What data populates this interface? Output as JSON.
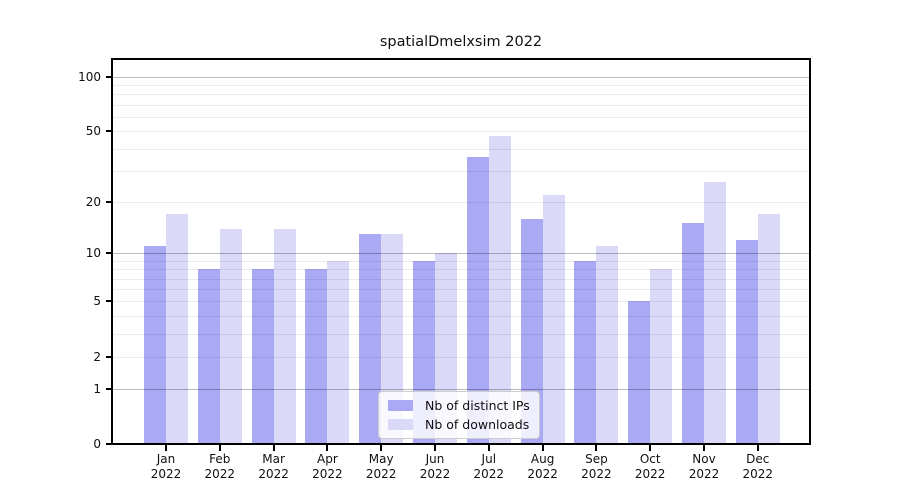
{
  "title": "spatialDmelxsim 2022",
  "chart_data": {
    "type": "bar",
    "title": "spatialDmelxsim 2022",
    "categories": [
      "Jan\n2022",
      "Feb\n2022",
      "Mar\n2022",
      "Apr\n2022",
      "May\n2022",
      "Jun\n2022",
      "Jul\n2022",
      "Aug\n2022",
      "Sep\n2022",
      "Oct\n2022",
      "Nov\n2022",
      "Dec\n2022"
    ],
    "series": [
      {
        "name": "Nb of distinct IPs",
        "color": "#a9a9f4",
        "values": [
          11,
          8,
          8,
          8,
          13,
          9,
          36,
          16,
          9,
          5,
          15,
          12
        ]
      },
      {
        "name": "Nb of downloads",
        "color": "#dadaf8",
        "values": [
          17,
          14,
          14,
          9,
          13,
          10,
          47,
          22,
          11,
          8,
          26,
          17
        ]
      }
    ],
    "xlabel": "",
    "ylabel": "",
    "y_scale": "log1p",
    "y_ticks": [
      0,
      1,
      2,
      5,
      10,
      20,
      50,
      100
    ],
    "ylim": [
      0,
      124
    ],
    "grid": {
      "major": [
        1,
        10,
        100
      ],
      "minor": [
        2,
        3,
        4,
        5,
        6,
        7,
        8,
        9,
        20,
        30,
        40,
        50,
        60,
        70,
        80,
        90
      ]
    },
    "legend": {
      "position": "lower center",
      "entries": [
        "Nb of distinct IPs",
        "Nb of downloads"
      ]
    }
  }
}
